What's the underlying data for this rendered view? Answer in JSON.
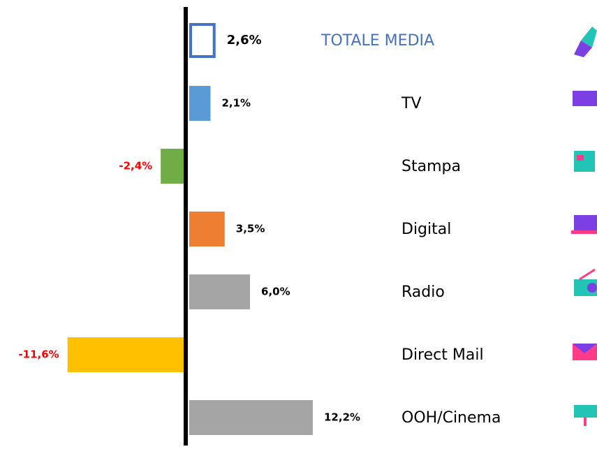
{
  "chart_data": {
    "type": "bar",
    "orientation": "horizontal",
    "categories": [
      "TOTALE MEDIA",
      "TV",
      "Stampa",
      "Digital",
      "Radio",
      "Direct Mail",
      "OOH/Cinema"
    ],
    "values": [
      2.6,
      2.1,
      -2.4,
      3.5,
      6.0,
      -11.6,
      12.2
    ],
    "value_labels": [
      "2,6%",
      "2,1%",
      "-2,4%",
      "3,5%",
      "6,0%",
      "-11,6%",
      "12,2%"
    ],
    "colors": [
      "#4472c4",
      "#5b9bd5",
      "#70ad47",
      "#ed7d31",
      "#a5a5a5",
      "#ffc000",
      "#a5a5a5"
    ],
    "bar_styles": [
      "outline",
      "fill",
      "fill",
      "fill",
      "fill",
      "fill",
      "fill"
    ],
    "category_colors": [
      "#4472c4",
      "#000000",
      "#000000",
      "#000000",
      "#000000",
      "#000000",
      "#000000"
    ],
    "negative_label_color": "#ff0000"
  }
}
